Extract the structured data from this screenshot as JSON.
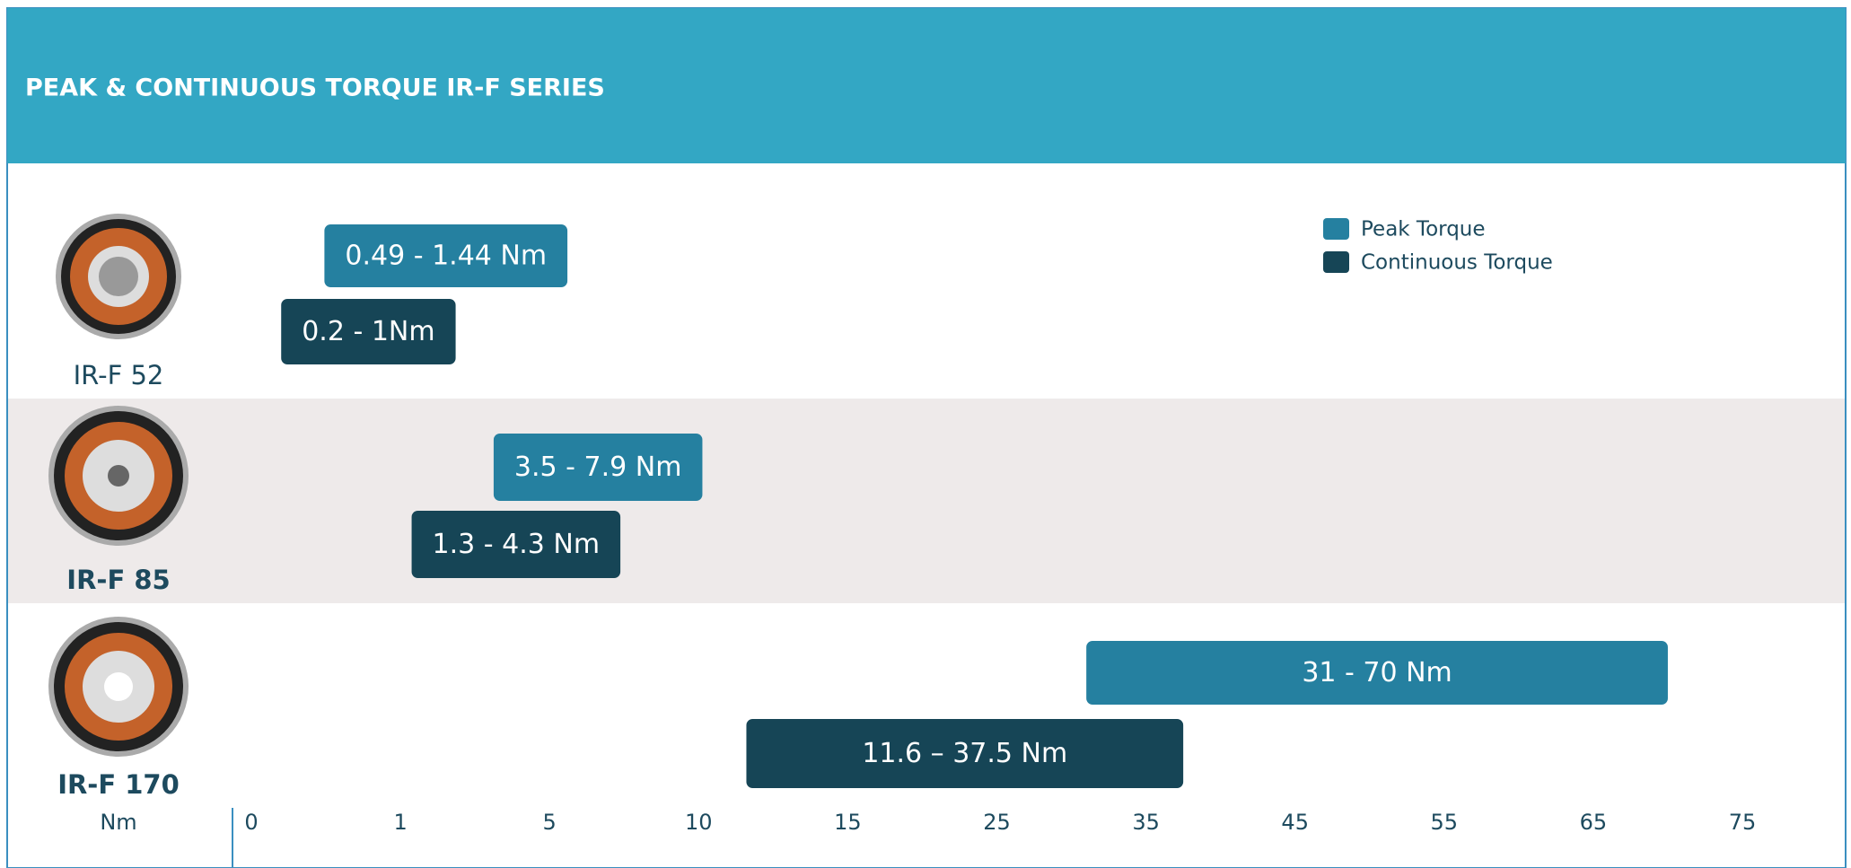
{
  "chart_data": {
    "type": "range-bar",
    "title": "PEAK & CONTINUOUS TORQUE IR-F SERIES",
    "categories": [
      "IR-F 52",
      "IR-F 85",
      "IR-F 170"
    ],
    "x_label": "Nm",
    "xlim": [
      0,
      75
    ],
    "xticks": [
      0,
      1,
      5,
      10,
      15,
      25,
      35,
      45,
      55,
      65,
      75
    ],
    "series": [
      {
        "name": "Peak Torque",
        "color": "#2580a0",
        "low": [
          0.49,
          3.5,
          31
        ],
        "high": [
          1.44,
          7.9,
          70
        ],
        "value_labels": [
          "0.49 - 1.44 Nm",
          "3.5 - 7.9 Nm",
          "31 - 70 Nm"
        ]
      },
      {
        "name": "Continuous Torque",
        "color": "#164556",
        "low": [
          0.2,
          1.3,
          11.6
        ],
        "high": [
          1,
          4.3,
          37.5
        ],
        "value_labels": [
          "0.2 - 1Nm",
          "1.3 - 4.3 Nm",
          "11.6 – 37.5 Nm"
        ]
      }
    ]
  }
}
